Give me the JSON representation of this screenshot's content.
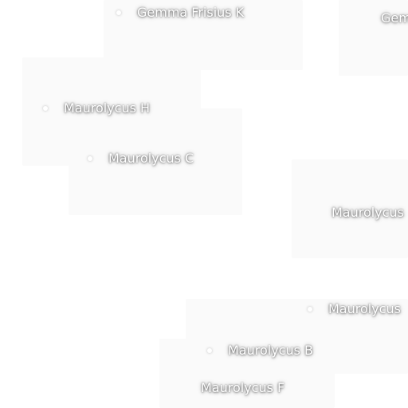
{
  "map": {
    "labels": {
      "gemma_frisius_k": "Gemma Frisius K",
      "gemma_partial": "Gem",
      "maurolycus_h": "Maurolycus H",
      "maurolycus_c": "Maurolycus C",
      "maurolycus_right_1": "Maurolycus",
      "maurolycus_right_2": "Maurolycus",
      "maurolycus_b": "Maurolycus B",
      "maurolycus_f": "Maurolycus F"
    }
  }
}
